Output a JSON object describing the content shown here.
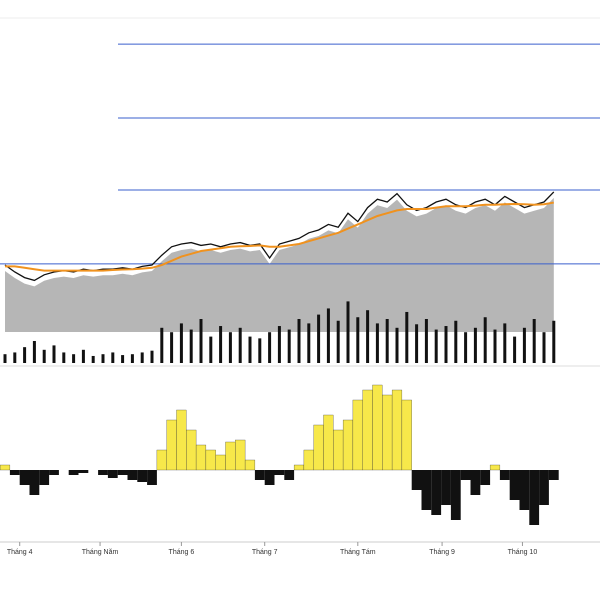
{
  "chart_data": {
    "type": "stock",
    "xticks": [
      {
        "value": 1.5,
        "label": "Tháng 4"
      },
      {
        "value": 9.7,
        "label": "Tháng Năm"
      },
      {
        "value": 18,
        "label": "Tháng 6"
      },
      {
        "value": 26.5,
        "label": "Tháng 7"
      },
      {
        "value": 36,
        "label": "Tháng Tám"
      },
      {
        "value": 44.6,
        "label": "Tháng 9"
      },
      {
        "value": 52.8,
        "label": "Tháng 10"
      }
    ],
    "ylim": [
      0,
      100
    ],
    "levels": [
      91.4,
      65,
      39.3,
      12.9
    ],
    "level_color": "#3a5fcd",
    "series": [
      {
        "color": "#111111",
        "values": [
          12.5,
          10,
          8,
          7,
          9,
          10,
          10.5,
          10,
          11,
          10.5,
          11,
          11,
          11.5,
          11,
          12,
          12.5,
          16,
          19,
          20,
          20.5,
          19.5,
          20,
          19,
          20,
          20.5,
          19.5,
          20,
          15,
          20,
          21,
          22,
          24,
          25,
          27,
          26,
          31,
          28,
          33,
          36,
          35,
          38,
          34,
          32,
          33,
          35,
          36,
          34,
          33,
          35,
          36,
          34,
          37,
          35,
          33,
          34,
          35,
          38.6
        ]
      },
      {
        "color": "#f0921e",
        "values": [
          12,
          12,
          11.5,
          11,
          10.5,
          10.5,
          10.5,
          10.5,
          10.5,
          10.5,
          10.5,
          10.7,
          10.9,
          11,
          11.2,
          11.5,
          12.5,
          14,
          15.5,
          16.5,
          17.5,
          18,
          18.5,
          19,
          19.2,
          19.3,
          19.5,
          19,
          19,
          19.5,
          20,
          21,
          22,
          23,
          24,
          25.5,
          27,
          28.5,
          30,
          31,
          32,
          32.5,
          32.5,
          32.5,
          33,
          33.5,
          33.5,
          33.5,
          33.7,
          34,
          34,
          34.2,
          34.3,
          34.2,
          34,
          34.2,
          34.8
        ]
      }
    ],
    "volume": {
      "color": "#111111",
      "ylim": [
        0,
        100
      ],
      "values": [
        10,
        12,
        18,
        25,
        15,
        20,
        12,
        10,
        15,
        8,
        10,
        12,
        9,
        10,
        12,
        14,
        40,
        35,
        45,
        38,
        50,
        30,
        42,
        35,
        40,
        30,
        28,
        35,
        42,
        38,
        50,
        45,
        55,
        62,
        48,
        70,
        52,
        60,
        45,
        50,
        40,
        58,
        44,
        50,
        38,
        42,
        48,
        35,
        40,
        52,
        38,
        45,
        30,
        40,
        50,
        35,
        48
      ]
    },
    "oscillator": {
      "ylim": [
        -100,
        100
      ],
      "positive_color": "#f7e84a",
      "negative_color": "#111111",
      "values": [
        5,
        -5,
        -15,
        -25,
        -15,
        -5,
        0,
        -5,
        -3,
        0,
        -5,
        -8,
        -5,
        -10,
        -12,
        -15,
        20,
        50,
        60,
        40,
        25,
        20,
        15,
        28,
        30,
        10,
        -10,
        -15,
        -5,
        -10,
        5,
        20,
        45,
        55,
        40,
        50,
        70,
        80,
        85,
        75,
        80,
        70,
        -20,
        -40,
        -45,
        -35,
        -50,
        -10,
        -25,
        -15,
        5,
        -10,
        -30,
        -40,
        -55,
        -35,
        -10
      ]
    }
  }
}
